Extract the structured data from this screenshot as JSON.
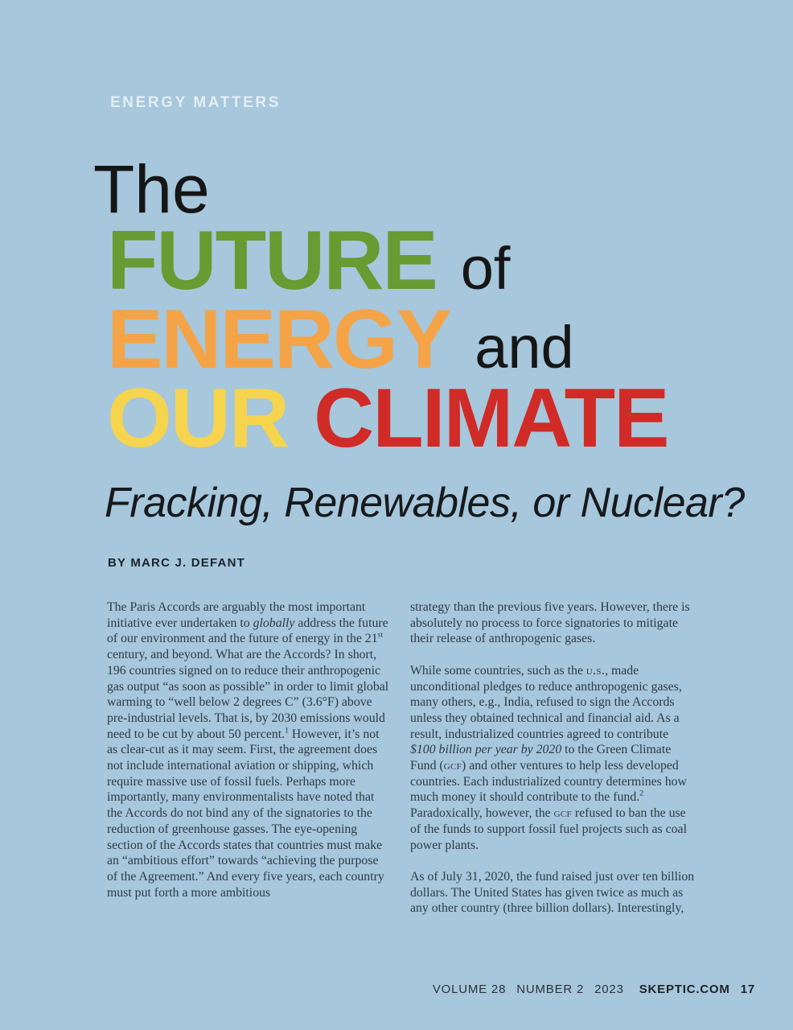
{
  "page": {
    "background_color": "#a6c7dc",
    "eyebrow": "ENERGY MATTERS",
    "title": {
      "the": "The",
      "future": "FUTURE",
      "of": "of",
      "energy": "ENERGY",
      "and": "and",
      "our": "OUR",
      "climate": "CLIMATE",
      "colors": {
        "future": "#689b31",
        "energy": "#f4a347",
        "our": "#f7d44e",
        "climate": "#d02b27",
        "plain_words": "#161616"
      }
    },
    "subtitle": "Fracking, Renewables, or Nuclear?",
    "byline": "BY MARC J. DEFANT"
  },
  "article": {
    "left_column": {
      "paragraphs": [
        "The Paris Accords are arguably the most important initiative ever undertaken to <i>globally</i> address the future of our environment and the future of energy in the 21<sup>st</sup> century, and beyond. What are the Accords? In short, 196 countries signed on to reduce their anthropogenic gas output “as soon as possible” in order to limit global warming to “well below 2 degrees C” (3.6°F) above pre-industrial levels. That is, by 2030 emissions would need to be cut by about 50 percent.<sup>1</sup> However, it’s not as clear-cut as it may seem. First, the agreement does not include international aviation or shipping, which require massive use of fossil fuels. Perhaps more importantly, many environmentalists have noted that the Accords do not bind any of the signatories to the reduction of greenhouse gasses. The eye-opening section of the Accords states that countries must make an “ambitious effort” towards “achieving the purpose of the Agreement.” And every five years, each country must put forth a more ambitious"
      ]
    },
    "right_column": {
      "paragraphs": [
        "strategy than the previous five years. However, there is absolutely no process to force signatories to mitigate their release of anthropogenic gases.",
        "While some countries, such as the <span class=\"sc\">u.s.</span>, made unconditional pledges to reduce anthropogenic gases, many others, e.g., India, refused to sign the Accords unless they obtained technical and financial aid. As a result, industrialized countries agreed to contribute <i>$100 billion per year by 2020</i> to the Green Climate Fund (<span class=\"sc\">gcf</span>) and other ventures to help less developed countries. Each industrialized country determines how much money it should contribute to the fund.<sup>2</sup> Paradoxically, however, the <span class=\"sc\">gcf</span> refused to ban the use of the funds to support fossil fuel projects such as coal power plants.",
        "As of July 31, 2020, the fund raised just over ten billion dollars. The United States has given twice as much as any other country (three billion dollars). Interestingly,"
      ]
    }
  },
  "footer": {
    "volume": "VOLUME 28",
    "number": "NUMBER 2",
    "year": "2023",
    "site": "SKEPTIC.COM",
    "page_number": "17"
  }
}
